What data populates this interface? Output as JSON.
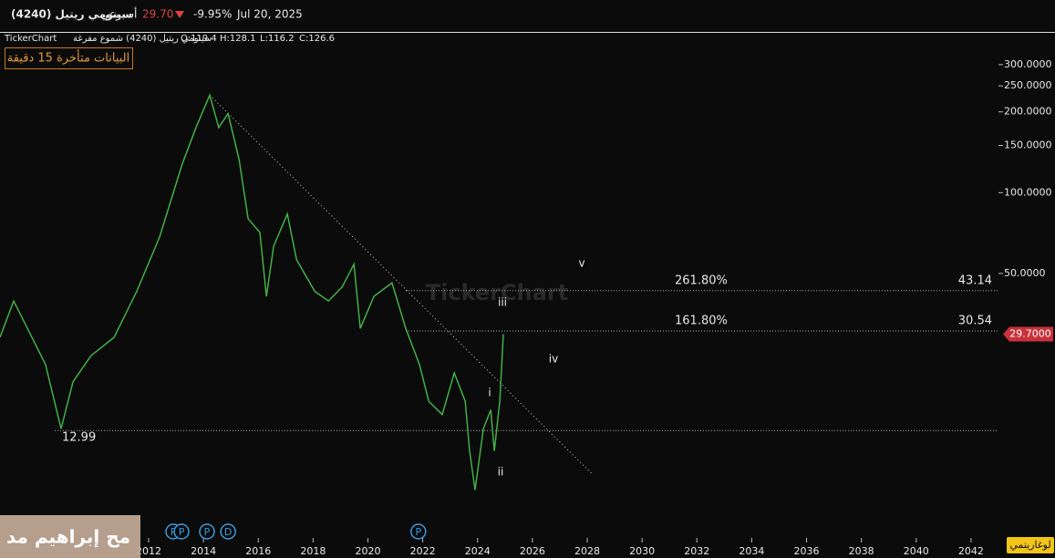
{
  "header": {
    "symbol": "سينومي ريتيل (4240)",
    "interval": "أسبوعي",
    "price": "29.70",
    "change": "-9.95%",
    "date": "Jul 20, 2025"
  },
  "legend_line": {
    "brand": "TickerChart",
    "series_name": "سينومي ريتيل (4240) شموع مفرغة",
    "open": "O:119.4",
    "high": "H:128.1",
    "low": "L:116.2",
    "close": "C:126.6"
  },
  "delay_notice": "البيانات متأخرة 15 دقيقة",
  "watermark": "TickerChart",
  "log_button": "لوغاريتمي",
  "overlay_text": "مح إبراهيم مد",
  "chart_data": {
    "type": "line",
    "log_scale": true,
    "x": [
      2006.58,
      2007.08,
      2007.58,
      2008.24,
      2008.81,
      2009.24,
      2009.9,
      2010.74,
      2011.57,
      2012.4,
      2013.23,
      2013.73,
      2014.23,
      2014.56,
      2014.9,
      2015.3,
      2015.63,
      2016.06,
      2016.3,
      2016.56,
      2017.06,
      2017.4,
      2018.06,
      2018.56,
      2019.06,
      2019.49,
      2019.72,
      2020.22,
      2020.88,
      2021.38,
      2021.88,
      2022.22,
      2022.71,
      2023.15,
      2023.55,
      2023.71,
      2023.91,
      2024.21,
      2024.48,
      2024.61,
      2024.81,
      2024.94
    ],
    "series": [
      {
        "name": "سينومي ريتيل (4240)",
        "color": "#43b047",
        "values": [
          28.9,
          39.5,
          31.2,
          22.9,
          13.2,
          19.7,
          24.7,
          28.9,
          42.9,
          68.3,
          128,
          175,
          231,
          175,
          197,
          133,
          80,
          71.1,
          41.1,
          63.2,
          83.3,
          56.2,
          42.9,
          39.5,
          44.5,
          54.1,
          31.2,
          41.1,
          46.1,
          31.2,
          22.9,
          16.7,
          14.9,
          21.3,
          16.7,
          10.9,
          7.8,
          13.2,
          15.5,
          10.9,
          16.7,
          29.7
        ]
      }
    ],
    "last_price": {
      "value": 29.7,
      "label": "29.7000"
    },
    "xlim": [
      2006.58,
      2043.0
    ],
    "xticks": [
      2012,
      2014,
      2016,
      2018,
      2020,
      2022,
      2024,
      2026,
      2028,
      2030,
      2032,
      2034,
      2036,
      2038,
      2040,
      2042
    ],
    "ylim": [
      5.17,
      391
    ],
    "yticks": [
      {
        "value": 300,
        "label": "300.0000"
      },
      {
        "value": 250,
        "label": "250.0000"
      },
      {
        "value": 200,
        "label": "200.0000"
      },
      {
        "value": 150,
        "label": "150.0000"
      },
      {
        "value": 100,
        "label": "100.0000"
      },
      {
        "value": 50,
        "label": "50.0000"
      }
    ],
    "levels": [
      {
        "value": 43.14,
        "ratio": "261.80%"
      },
      {
        "value": 30.54,
        "ratio": "161.80%"
      },
      {
        "value": 12.99
      }
    ],
    "trendline": {
      "x": [
        2014.23,
        2028.2
      ],
      "values": [
        231,
        8.9
      ]
    },
    "wave_labels": [
      "i",
      "ii",
      "iii",
      "iv",
      "v"
    ],
    "events": [
      {
        "x": 2012.9,
        "label": "P"
      },
      {
        "x": 2013.2,
        "label": "P"
      },
      {
        "x": 2014.13,
        "label": "P"
      },
      {
        "x": 2014.9,
        "label": "D"
      },
      {
        "x": 2021.84,
        "label": "P"
      }
    ]
  }
}
